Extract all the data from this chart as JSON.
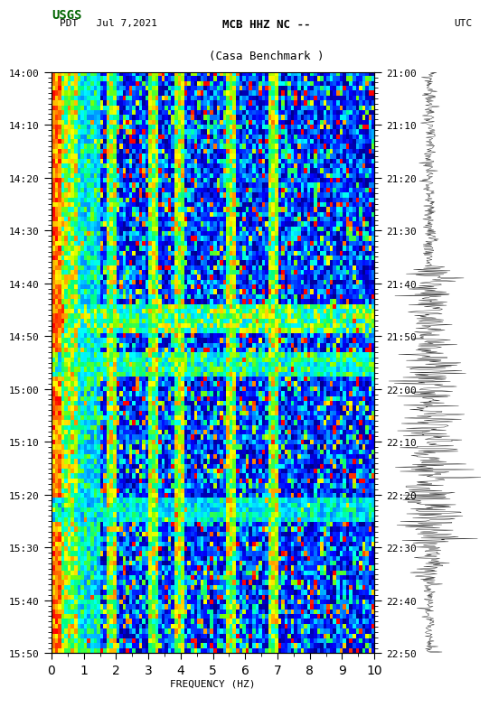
{
  "title_line1": "MCB HHZ NC --",
  "title_line2": "(Casa Benchmark )",
  "date_label": "PDT   Jul 7,2021",
  "left_tz": "PDT",
  "right_tz": "UTC",
  "left_times": [
    "14:00",
    "14:10",
    "14:20",
    "14:30",
    "14:40",
    "14:50",
    "15:00",
    "15:10",
    "15:20",
    "15:30",
    "15:40",
    "15:50"
  ],
  "right_times": [
    "21:00",
    "21:10",
    "21:20",
    "21:30",
    "21:40",
    "21:50",
    "22:00",
    "22:10",
    "22:20",
    "22:30",
    "22:40",
    "22:50"
  ],
  "freq_min": 0,
  "freq_max": 10,
  "freq_ticks": [
    0,
    1,
    2,
    3,
    4,
    5,
    6,
    7,
    8,
    9,
    10
  ],
  "xlabel": "FREQUENCY (HZ)",
  "n_time_bins": 120,
  "n_freq_bins": 100,
  "spectrogram_seed": 42,
  "vertical_line_freqs": [
    0.5,
    1.8,
    3.1,
    3.9,
    5.5,
    6.8
  ],
  "colormap_colors": [
    "#00008B",
    "#0000FF",
    "#0040FF",
    "#0080FF",
    "#00BFFF",
    "#00FFFF",
    "#00FF80",
    "#80FF00",
    "#FFFF00",
    "#FF8000",
    "#FF0000"
  ],
  "background_color": "#ffffff",
  "fig_width": 5.52,
  "fig_height": 8.92
}
